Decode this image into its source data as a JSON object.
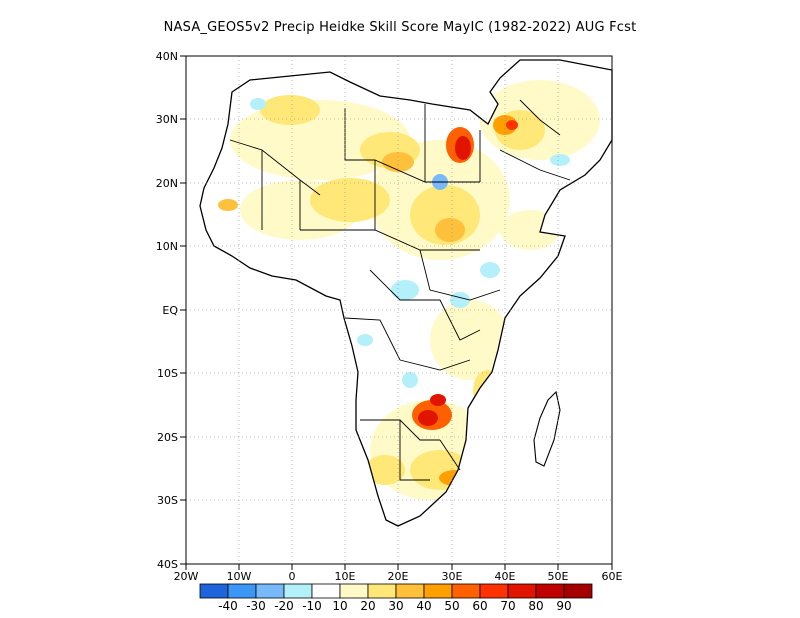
{
  "title": "NASA_GEOS5v2 Precip Heidke Skill Score MayIC (1982-2022) AUG Fcst",
  "map": {
    "lon_range": [
      -20,
      60
    ],
    "lat_range": [
      -40,
      40
    ],
    "lon_ticks": [
      "20W",
      "10W",
      "0",
      "10E",
      "20E",
      "30E",
      "40E",
      "50E",
      "60E"
    ],
    "lat_ticks": [
      "40N",
      "30N",
      "20N",
      "10N",
      "EQ",
      "10S",
      "20S",
      "30S",
      "40S"
    ],
    "grid": "dotted"
  },
  "colorbar": {
    "colors": [
      "#1e64dc",
      "#3c96f5",
      "#78b9fa",
      "#b4f0fa",
      "#ffffff",
      "#fffac8",
      "#ffe878",
      "#ffc03c",
      "#ffa000",
      "#ff6000",
      "#ff3200",
      "#e11400",
      "#c00000",
      "#a50000"
    ],
    "labels": [
      "-40",
      "-30",
      "-20",
      "-10",
      "10",
      "20",
      "30",
      "40",
      "50",
      "60",
      "70",
      "80",
      "90"
    ]
  }
}
